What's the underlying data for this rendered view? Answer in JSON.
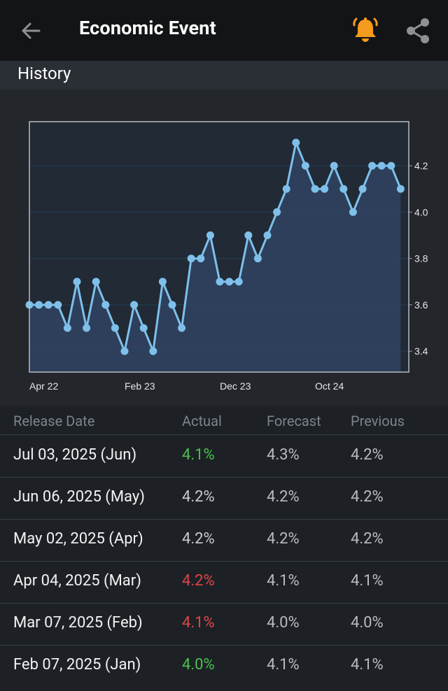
{
  "header": {
    "title": "Economic Event",
    "accent_color": "#f59b1e"
  },
  "section": {
    "title": "History"
  },
  "chart_data": {
    "type": "line",
    "title": "",
    "y_axis_side": "right",
    "ylim": [
      3.31,
      4.39
    ],
    "y_ticks": [
      "3.4",
      "3.6",
      "3.8",
      "4.0",
      "4.2"
    ],
    "x_tick_labels": [
      {
        "label": "Apr 22",
        "index": 0
      },
      {
        "label": "Feb 23",
        "index": 10
      },
      {
        "label": "Dec 23",
        "index": 20
      },
      {
        "label": "Oct 24",
        "index": 30
      }
    ],
    "values": [
      3.6,
      3.6,
      3.6,
      3.6,
      3.5,
      3.7,
      3.5,
      3.7,
      3.6,
      3.5,
      3.4,
      3.6,
      3.5,
      3.4,
      3.7,
      3.6,
      3.5,
      3.8,
      3.8,
      3.9,
      3.7,
      3.7,
      3.7,
      3.9,
      3.8,
      3.9,
      4.0,
      4.1,
      4.3,
      4.2,
      4.1,
      4.1,
      4.2,
      4.1,
      4.0,
      4.1,
      4.2,
      4.2,
      4.2,
      4.1
    ],
    "line_color": "#7ec0ea",
    "fill_color": "#2f4361"
  },
  "table": {
    "headers": {
      "date": "Release Date",
      "actual": "Actual",
      "forecast": "Forecast",
      "previous": "Previous"
    },
    "rows": [
      {
        "date": "Jul 03, 2025 (Jun)",
        "actual": "4.1%",
        "forecast": "4.3%",
        "previous": "4.2%",
        "status": "green"
      },
      {
        "date": "Jun 06, 2025 (May)",
        "actual": "4.2%",
        "forecast": "4.2%",
        "previous": "4.2%",
        "status": "neutral"
      },
      {
        "date": "May 02, 2025 (Apr)",
        "actual": "4.2%",
        "forecast": "4.2%",
        "previous": "4.2%",
        "status": "neutral"
      },
      {
        "date": "Apr 04, 2025 (Mar)",
        "actual": "4.2%",
        "forecast": "4.1%",
        "previous": "4.1%",
        "status": "red"
      },
      {
        "date": "Mar 07, 2025 (Feb)",
        "actual": "4.1%",
        "forecast": "4.0%",
        "previous": "4.0%",
        "status": "red"
      },
      {
        "date": "Feb 07, 2025 (Jan)",
        "actual": "4.0%",
        "forecast": "4.1%",
        "previous": "4.1%",
        "status": "green"
      }
    ]
  }
}
